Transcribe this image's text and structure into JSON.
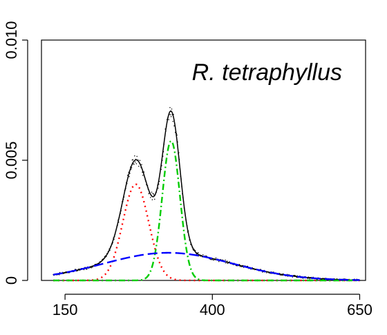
{
  "chart_data": {
    "type": "line",
    "title": "R. tetraphyllus",
    "xlabel": "",
    "ylabel": "",
    "xlim": [
      110,
      660
    ],
    "ylim": [
      0,
      0.01
    ],
    "x_ticks": [
      150,
      400,
      650
    ],
    "x_tick_labels": [
      "150",
      "400",
      "650"
    ],
    "y_ticks": [
      0,
      0.005,
      0.01
    ],
    "y_tick_labels": [
      "0",
      "0.005",
      "0.010"
    ],
    "grid": false,
    "legend": "none",
    "x_range": [
      130,
      650
    ],
    "series": [
      {
        "kind": "points",
        "color": "#000000",
        "components": [
          {
            "mu": 270,
            "sigma": 22,
            "amp": 0.004
          },
          {
            "mu": 330,
            "sigma": 15,
            "amp": 0.0058
          },
          {
            "mu": 325,
            "sigma": 110,
            "amp": 0.00115
          }
        ]
      },
      {
        "kind": "fit-total",
        "color": "#000000",
        "style": "solid",
        "components": [
          {
            "mu": 270,
            "sigma": 22,
            "amp": 0.004
          },
          {
            "mu": 330,
            "sigma": 15,
            "amp": 0.0058
          },
          {
            "mu": 325,
            "sigma": 110,
            "amp": 0.00115
          }
        ]
      },
      {
        "kind": "component",
        "color": "#ff0000",
        "style": "dotted",
        "components": [
          {
            "mu": 270,
            "sigma": 22,
            "amp": 0.004
          }
        ]
      },
      {
        "kind": "component",
        "color": "#00cc00",
        "style": "dotdash",
        "components": [
          {
            "mu": 330,
            "sigma": 15,
            "amp": 0.0058
          }
        ]
      },
      {
        "kind": "component",
        "color": "#0000ff",
        "style": "longdash",
        "components": [
          {
            "mu": 325,
            "sigma": 110,
            "amp": 0.00115
          }
        ]
      }
    ]
  }
}
